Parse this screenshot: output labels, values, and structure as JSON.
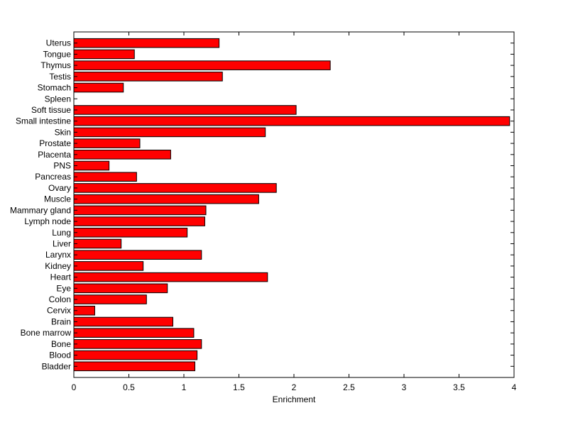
{
  "chart_data": {
    "type": "bar",
    "orientation": "horizontal",
    "title": "",
    "xlabel": "Enrichment",
    "ylabel": "",
    "xlim": [
      0,
      4
    ],
    "x_ticks": [
      "0",
      "0.5",
      "1",
      "1.5",
      "2",
      "2.5",
      "3",
      "3.5",
      "4"
    ],
    "categories": [
      "Bladder",
      "Blood",
      "Bone",
      "Bone marrow",
      "Brain",
      "Cervix",
      "Colon",
      "Eye",
      "Heart",
      "Kidney",
      "Larynx",
      "Liver",
      "Lung",
      "Lymph node",
      "Mammary gland",
      "Muscle",
      "Ovary",
      "Pancreas",
      "PNS",
      "Placenta",
      "Prostate",
      "Skin",
      "Small intestine",
      "Soft tissue",
      "Spleen",
      "Stomach",
      "Testis",
      "Thymus",
      "Tongue",
      "Uterus"
    ],
    "values": [
      1.1,
      1.12,
      1.16,
      1.09,
      0.9,
      0.19,
      0.66,
      0.85,
      1.76,
      0.63,
      1.16,
      0.43,
      1.03,
      1.19,
      1.2,
      1.68,
      1.84,
      0.57,
      0.32,
      0.88,
      0.6,
      1.74,
      3.96,
      2.02,
      0.0,
      0.45,
      1.35,
      2.33,
      0.55,
      1.32
    ],
    "grid": false,
    "legend": "none",
    "colors": {
      "bar_fill": "#ff0000",
      "bar_edge": "#000000",
      "axes": "#000000",
      "background": "#ffffff"
    }
  }
}
